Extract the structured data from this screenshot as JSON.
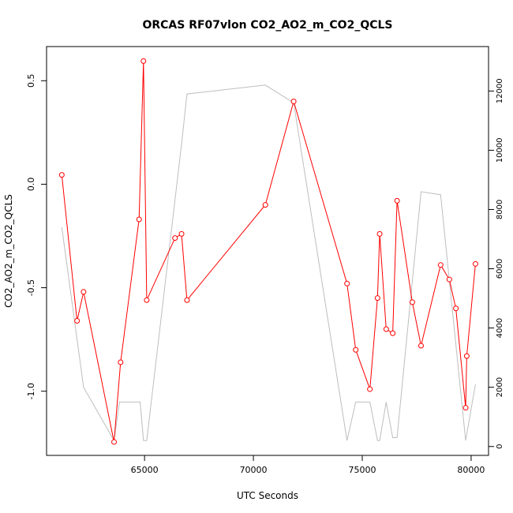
{
  "chart_data": {
    "type": "line",
    "title": "ORCAS RF07vlon CO2_AO2_m_CO2_QCLS",
    "xlabel": "UTC Seconds",
    "ylabel": "CO2_AO2_m_CO2_QCLS",
    "xlim": [
      60500,
      80800
    ],
    "ylim": [
      -1.31,
      0.665
    ],
    "y2lim": [
      -300,
      13500
    ],
    "x_ticks": [
      65000,
      70000,
      75000,
      80000
    ],
    "x_tick_labels": [
      "65000",
      "70000",
      "75000",
      "80000"
    ],
    "y_ticks": [
      -1.0,
      -0.5,
      0.0,
      0.5
    ],
    "y_tick_labels": [
      "-1.0",
      "-0.5",
      "0.0",
      "0.5"
    ],
    "y2_ticks": [
      0,
      2000,
      4000,
      6000,
      8000,
      10000,
      12000
    ],
    "y2_tick_labels": [
      "0",
      "2000",
      "4000",
      "6000",
      "8000",
      "10000",
      "12000"
    ],
    "grid": false,
    "series": [
      {
        "axis": "left",
        "color": "#ff0000",
        "markers": "open-circle",
        "x": [
          61200,
          61900,
          62200,
          63600,
          63900,
          64750,
          64950,
          65100,
          66400,
          66700,
          66950,
          70550,
          71850,
          74300,
          74700,
          75350,
          75700,
          75800,
          76100,
          76400,
          76600,
          77300,
          77700,
          78600,
          79000,
          79300,
          79750,
          79800,
          80200
        ],
        "y": [
          0.045,
          -0.66,
          -0.52,
          -1.245,
          -0.86,
          -0.17,
          0.595,
          -0.56,
          -0.26,
          -0.24,
          -0.56,
          -0.1,
          0.4,
          -0.48,
          -0.8,
          -0.99,
          -0.55,
          -0.24,
          -0.7,
          -0.72,
          -0.08,
          -0.57,
          -0.78,
          -0.39,
          -0.46,
          -0.6,
          -1.08,
          -0.83,
          -0.385
        ]
      },
      {
        "axis": "right",
        "color": "#bebebe",
        "markers": "none",
        "x": [
          61200,
          62200,
          63600,
          63850,
          64800,
          64950,
          65100,
          66700,
          66950,
          70550,
          71850,
          74300,
          74700,
          75350,
          75700,
          75800,
          76100,
          76400,
          76600,
          77700,
          78600,
          79750,
          80200
        ],
        "y": [
          7400,
          2000,
          200,
          1500,
          1500,
          200,
          200,
          10200,
          11900,
          12200,
          11600,
          200,
          1500,
          1500,
          200,
          200,
          1500,
          300,
          300,
          8600,
          8500,
          200,
          2100
        ]
      }
    ]
  }
}
